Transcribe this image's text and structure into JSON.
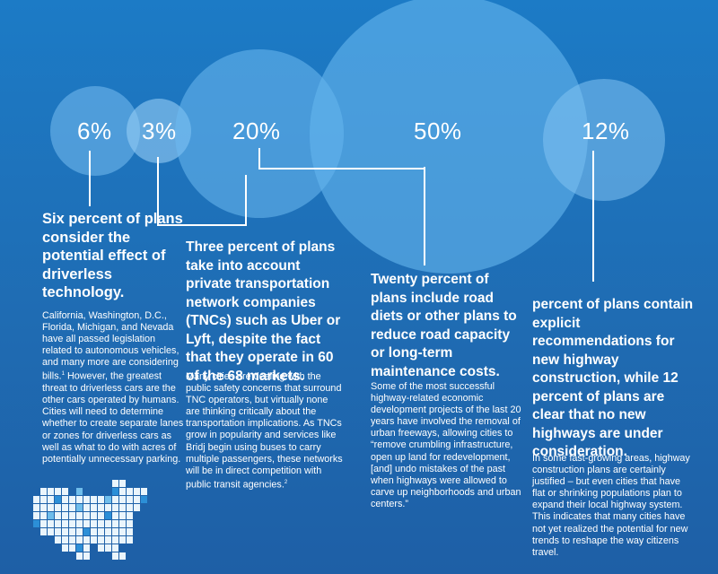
{
  "stats": [
    {
      "percent": "6%",
      "heading": "Six percent of plans consider the potential effect of driverless technology.",
      "body": "California, Washington, D.C., Florida, Michigan, and Nevada have all passed legislation related to autonomous vehicles, and many more are considering bills.",
      "footnote": "1",
      "body_cont": " However, the greatest threat to driverless cars are the other cars operated by humans. Cities will need to determine whether to create separate lanes or zones for driverless cars as well as what to do with acres of potentially unnecessary parking."
    },
    {
      "percent": "3%",
      "heading": "Three percent of plans take into account private transportation network companies (TNCs) such as Uber or Lyft, despite the fact that they operate in 60 of the 68 markets.",
      "body": "Many cities are dealing with the public safety concerns that surround TNC operators, but virtually none are thinking critically about the transportation implications. As TNCs grow in popularity and services like Bridj begin using buses to carry multiple passengers, these networks will be in direct competition with public transit agencies.",
      "footnote": "2"
    },
    {
      "percent": "20%",
      "heading": "Twenty percent of plans include road diets or other plans to reduce road capacity or long-term maintenance costs.",
      "body": "Some of the most successful highway-related economic development projects of the last 20 years have involved the removal of urban freeways, allowing cities to “remove crumbling infrastructure, open up land for redevelopment, [and] undo mistakes of the past when highways were allowed to carve up neighborhoods and urban centers.”"
    },
    {
      "percent": "50%"
    },
    {
      "percent": "12%",
      "heading": "percent of plans contain explicit recommendations for new highway construction, while 12 percent of plans are clear that no new highways are under consideration.",
      "body": "In some fast-growing areas, highway construction plans are certainly justified – but even cities that have flat or shrinking populations plan to expand their local highway system. This indicates that many cities have not yet realized the potential for new trends to reshape the way citizens travel."
    }
  ],
  "colors": {
    "background": "#1e6fb8",
    "circle": "#5aaee6",
    "map_light": "#eaf5fc",
    "map_mid": "#6fbdeb",
    "map_dark": "#2c8fd7"
  }
}
